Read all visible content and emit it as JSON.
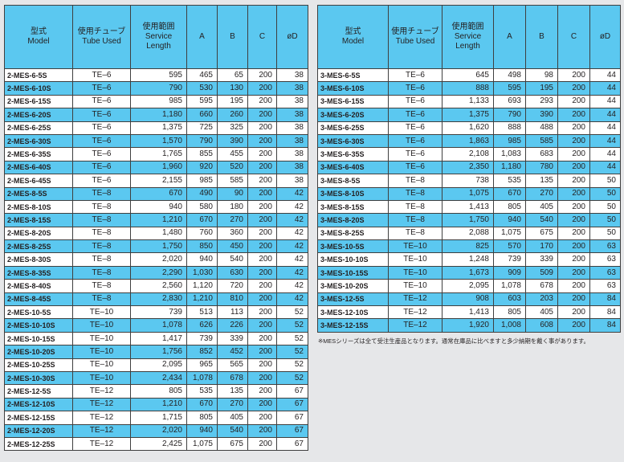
{
  "headers": {
    "model_jp": "型式",
    "model_en": "Model",
    "tube_jp": "使用チューブ",
    "tube_en": "Tube Used",
    "length_jp": "使用範囲",
    "length_en1": "Service",
    "length_en2": "Length",
    "a": "A",
    "b": "B",
    "c": "C",
    "d": "øD"
  },
  "left_rows": [
    [
      "2-MES-6-5S",
      "TE–6",
      "595",
      "465",
      "65",
      "200",
      "38"
    ],
    [
      "2-MES-6-10S",
      "TE–6",
      "790",
      "530",
      "130",
      "200",
      "38"
    ],
    [
      "2-MES-6-15S",
      "TE–6",
      "985",
      "595",
      "195",
      "200",
      "38"
    ],
    [
      "2-MES-6-20S",
      "TE–6",
      "1,180",
      "660",
      "260",
      "200",
      "38"
    ],
    [
      "2-MES-6-25S",
      "TE–6",
      "1,375",
      "725",
      "325",
      "200",
      "38"
    ],
    [
      "2-MES-6-30S",
      "TE–6",
      "1,570",
      "790",
      "390",
      "200",
      "38"
    ],
    [
      "2-MES-6-35S",
      "TE–6",
      "1,765",
      "855",
      "455",
      "200",
      "38"
    ],
    [
      "2-MES-6-40S",
      "TE–6",
      "1,960",
      "920",
      "520",
      "200",
      "38"
    ],
    [
      "2-MES-6-45S",
      "TE–6",
      "2,155",
      "985",
      "585",
      "200",
      "38"
    ],
    [
      "2-MES-8-5S",
      "TE–8",
      "670",
      "490",
      "90",
      "200",
      "42"
    ],
    [
      "2-MES-8-10S",
      "TE–8",
      "940",
      "580",
      "180",
      "200",
      "42"
    ],
    [
      "2-MES-8-15S",
      "TE–8",
      "1,210",
      "670",
      "270",
      "200",
      "42"
    ],
    [
      "2-MES-8-20S",
      "TE–8",
      "1,480",
      "760",
      "360",
      "200",
      "42"
    ],
    [
      "2-MES-8-25S",
      "TE–8",
      "1,750",
      "850",
      "450",
      "200",
      "42"
    ],
    [
      "2-MES-8-30S",
      "TE–8",
      "2,020",
      "940",
      "540",
      "200",
      "42"
    ],
    [
      "2-MES-8-35S",
      "TE–8",
      "2,290",
      "1,030",
      "630",
      "200",
      "42"
    ],
    [
      "2-MES-8-40S",
      "TE–8",
      "2,560",
      "1,120",
      "720",
      "200",
      "42"
    ],
    [
      "2-MES-8-45S",
      "TE–8",
      "2,830",
      "1,210",
      "810",
      "200",
      "42"
    ],
    [
      "2-MES-10-5S",
      "TE–10",
      "739",
      "513",
      "113",
      "200",
      "52"
    ],
    [
      "2-MES-10-10S",
      "TE–10",
      "1,078",
      "626",
      "226",
      "200",
      "52"
    ],
    [
      "2-MES-10-15S",
      "TE–10",
      "1,417",
      "739",
      "339",
      "200",
      "52"
    ],
    [
      "2-MES-10-20S",
      "TE–10",
      "1,756",
      "852",
      "452",
      "200",
      "52"
    ],
    [
      "2-MES-10-25S",
      "TE–10",
      "2,095",
      "965",
      "565",
      "200",
      "52"
    ],
    [
      "2-MES-10-30S",
      "TE–10",
      "2,434",
      "1,078",
      "678",
      "200",
      "52"
    ],
    [
      "2-MES-12-5S",
      "TE–12",
      "805",
      "535",
      "135",
      "200",
      "67"
    ],
    [
      "2-MES-12-10S",
      "TE–12",
      "1,210",
      "670",
      "270",
      "200",
      "67"
    ],
    [
      "2-MES-12-15S",
      "TE–12",
      "1,715",
      "805",
      "405",
      "200",
      "67"
    ],
    [
      "2-MES-12-20S",
      "TE–12",
      "2,020",
      "940",
      "540",
      "200",
      "67"
    ],
    [
      "2-MES-12-25S",
      "TE–12",
      "2,425",
      "1,075",
      "675",
      "200",
      "67"
    ]
  ],
  "right_rows": [
    [
      "3-MES-6-5S",
      "TE–6",
      "645",
      "498",
      "98",
      "200",
      "44"
    ],
    [
      "3-MES-6-10S",
      "TE–6",
      "888",
      "595",
      "195",
      "200",
      "44"
    ],
    [
      "3-MES-6-15S",
      "TE–6",
      "1,133",
      "693",
      "293",
      "200",
      "44"
    ],
    [
      "3-MES-6-20S",
      "TE–6",
      "1,375",
      "790",
      "390",
      "200",
      "44"
    ],
    [
      "3-MES-6-25S",
      "TE–6",
      "1,620",
      "888",
      "488",
      "200",
      "44"
    ],
    [
      "3-MES-6-30S",
      "TE–6",
      "1,863",
      "985",
      "585",
      "200",
      "44"
    ],
    [
      "3-MES-6-35S",
      "TE–6",
      "2,108",
      "1,083",
      "683",
      "200",
      "44"
    ],
    [
      "3-MES-6-40S",
      "TE–6",
      "2,350",
      "1,180",
      "780",
      "200",
      "44"
    ],
    [
      "3-MES-8-5S",
      "TE–8",
      "738",
      "535",
      "135",
      "200",
      "50"
    ],
    [
      "3-MES-8-10S",
      "TE–8",
      "1,075",
      "670",
      "270",
      "200",
      "50"
    ],
    [
      "3-MES-8-15S",
      "TE–8",
      "1,413",
      "805",
      "405",
      "200",
      "50"
    ],
    [
      "3-MES-8-20S",
      "TE–8",
      "1,750",
      "940",
      "540",
      "200",
      "50"
    ],
    [
      "3-MES-8-25S",
      "TE–8",
      "2,088",
      "1,075",
      "675",
      "200",
      "50"
    ],
    [
      "3-MES-10-5S",
      "TE–10",
      "825",
      "570",
      "170",
      "200",
      "63"
    ],
    [
      "3-MES-10-10S",
      "TE–10",
      "1,248",
      "739",
      "339",
      "200",
      "63"
    ],
    [
      "3-MES-10-15S",
      "TE–10",
      "1,673",
      "909",
      "509",
      "200",
      "63"
    ],
    [
      "3-MES-10-20S",
      "TE–10",
      "2,095",
      "1,078",
      "678",
      "200",
      "63"
    ],
    [
      "3-MES-12-5S",
      "TE–12",
      "908",
      "603",
      "203",
      "200",
      "84"
    ],
    [
      "3-MES-12-10S",
      "TE–12",
      "1,413",
      "805",
      "405",
      "200",
      "84"
    ],
    [
      "3-MES-12-15S",
      "TE–12",
      "1,920",
      "1,008",
      "608",
      "200",
      "84"
    ]
  ],
  "note": "※MESシリーズは全て受注生産品となります。通常在庫品に比べますと多少納期を戴く事があります。",
  "colors": {
    "header_bg": "#5bc8f0",
    "alt_row_bg": "#5bc8f0",
    "page_bg": "#e6e7e9"
  }
}
